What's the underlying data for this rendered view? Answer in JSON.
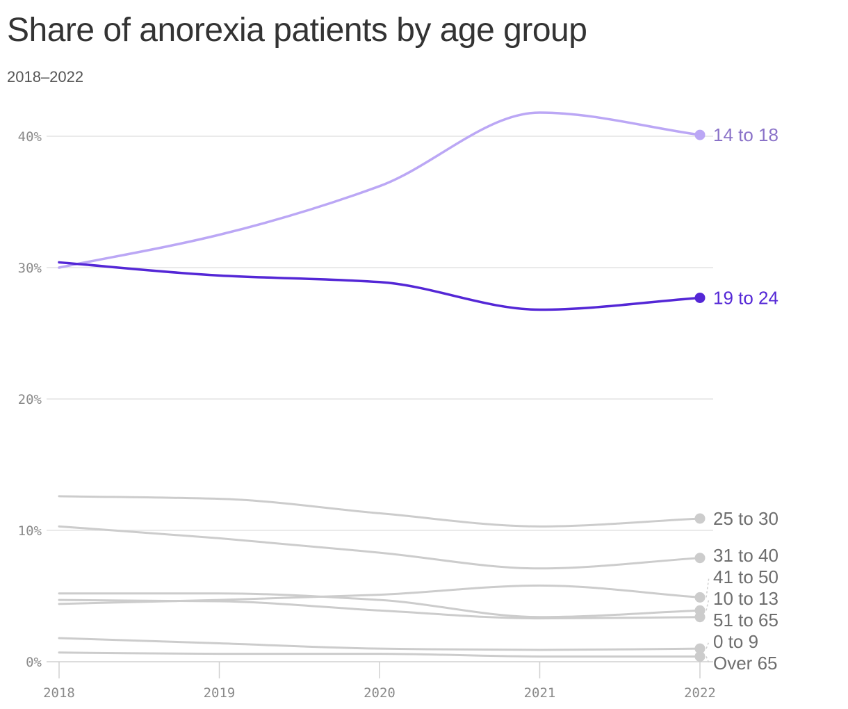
{
  "chart_data": {
    "type": "line",
    "title": "Share of anorexia patients by age group",
    "subtitle": "2018–2022",
    "x": [
      2018,
      2019,
      2020,
      2021,
      2022
    ],
    "x_tick_labels": [
      "2018",
      "2019",
      "2020",
      "2021",
      "2022"
    ],
    "y_tick_values": [
      0,
      10,
      20,
      30,
      40
    ],
    "y_tick_labels": [
      "0%",
      "10%",
      "20%",
      "30%",
      "40%"
    ],
    "ylim": [
      0,
      42
    ],
    "y_unit": "%",
    "grid": "horizontal",
    "legend": "end-of-line labels",
    "series": [
      {
        "name": "14 to 18",
        "values": [
          30.0,
          32.5,
          36.2,
          41.8,
          40.1
        ],
        "color": "#bba7f5",
        "label_color": "#8a72c8"
      },
      {
        "name": "19 to 24",
        "values": [
          30.4,
          29.4,
          28.9,
          26.8,
          27.7
        ],
        "color": "#5427d6",
        "label_color": "#5427d6"
      },
      {
        "name": "25 to 30",
        "values": [
          12.6,
          12.4,
          11.3,
          10.3,
          10.9
        ],
        "color": "#cccccc",
        "label_color": "#6e6e6e"
      },
      {
        "name": "31 to 40",
        "values": [
          10.3,
          9.4,
          8.3,
          7.1,
          7.9
        ],
        "color": "#cccccc",
        "label_color": "#6e6e6e"
      },
      {
        "name": "10 to 13",
        "values": [
          5.2,
          5.2,
          4.7,
          3.4,
          3.9
        ],
        "color": "#cccccc",
        "label_color": "#6e6e6e"
      },
      {
        "name": "41 to 50",
        "values": [
          4.4,
          4.7,
          5.1,
          5.8,
          4.9
        ],
        "color": "#cccccc",
        "label_color": "#6e6e6e"
      },
      {
        "name": "51 to 65",
        "values": [
          4.7,
          4.6,
          3.9,
          3.3,
          3.4
        ],
        "color": "#cccccc",
        "label_color": "#6e6e6e"
      },
      {
        "name": "0 to 9",
        "values": [
          1.8,
          1.4,
          1.0,
          0.9,
          1.0
        ],
        "color": "#cccccc",
        "label_color": "#6e6e6e"
      },
      {
        "name": "Over 65",
        "values": [
          0.7,
          0.6,
          0.6,
          0.4,
          0.4
        ],
        "color": "#cccccc",
        "label_color": "#6e6e6e"
      }
    ]
  }
}
